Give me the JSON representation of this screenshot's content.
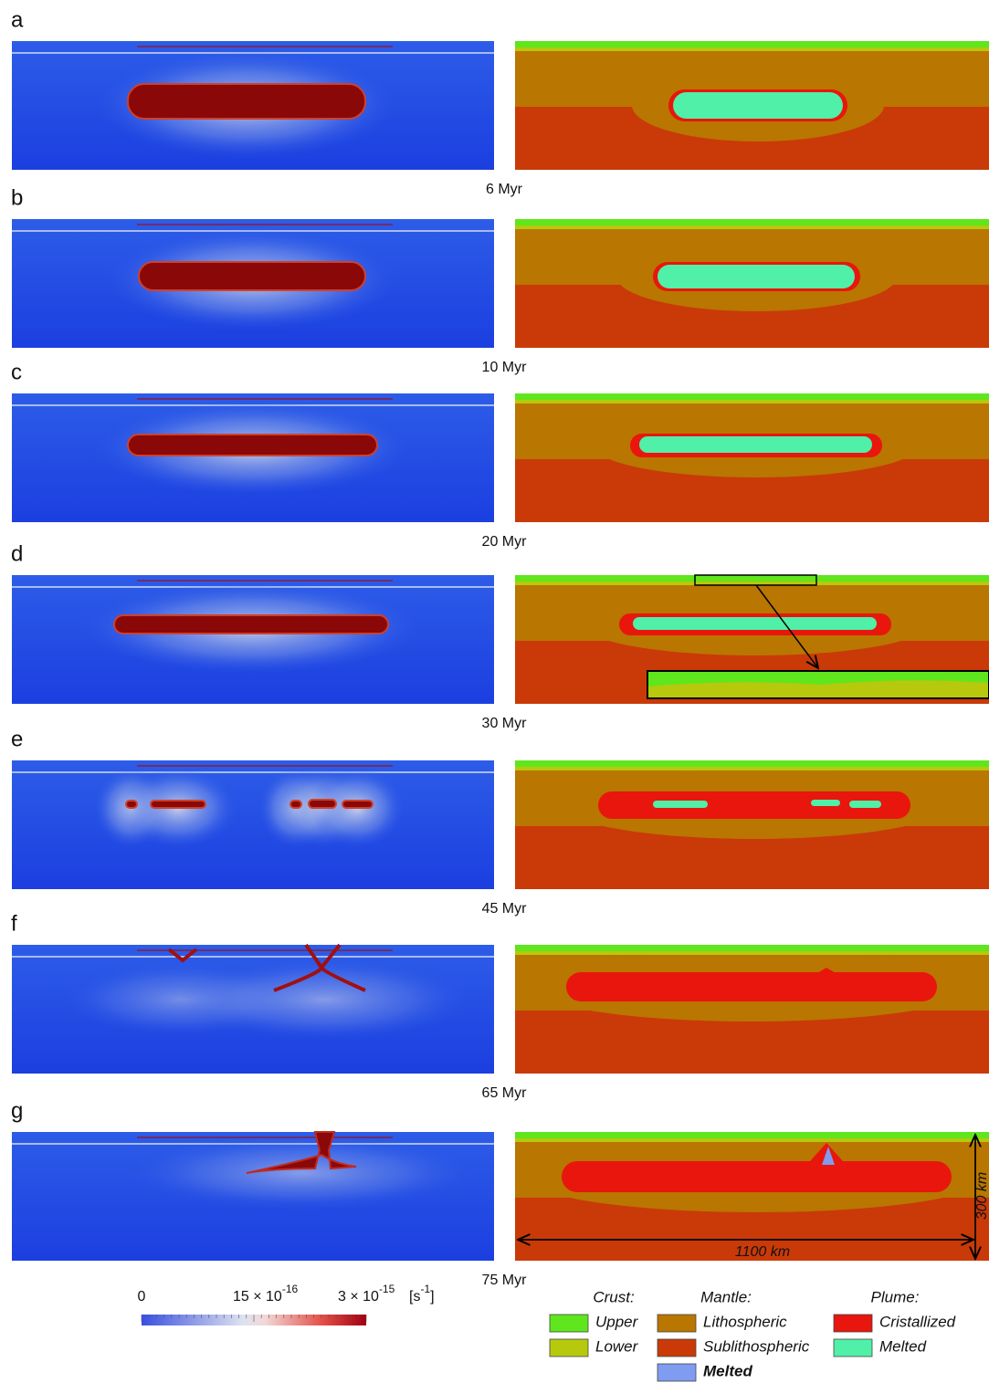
{
  "panels": [
    {
      "letter": "a",
      "time": "6 Myr"
    },
    {
      "letter": "b",
      "time": "10 Myr"
    },
    {
      "letter": "c",
      "time": "20 Myr"
    },
    {
      "letter": "d",
      "time": "30 Myr"
    },
    {
      "letter": "e",
      "time": "45 Myr"
    },
    {
      "letter": "f",
      "time": "65 Myr"
    },
    {
      "letter": "g",
      "time": "75 Myr"
    }
  ],
  "colorbar": {
    "ticks": [
      {
        "text": "0"
      },
      {
        "text": "15 × 10",
        "sup": "-16"
      },
      {
        "text": "3 × 10",
        "sup": "-15"
      }
    ],
    "unit": {
      "open": "[s",
      "sup": "-1",
      "close": "]"
    }
  },
  "legend": [
    {
      "heading": "Crust:",
      "items": [
        {
          "label": "Upper",
          "color": "#5fe61c"
        },
        {
          "label": "Lower",
          "color": "#b7c90c"
        }
      ]
    },
    {
      "heading": "Mantle:",
      "items": [
        {
          "label": "Lithospheric",
          "color": "#b97600"
        },
        {
          "label": "Sublithospheric",
          "color": "#c93a08"
        },
        {
          "label": "Melted",
          "color": "#7f9cf0",
          "bold": true
        }
      ]
    },
    {
      "heading": "Plume:",
      "items": [
        {
          "label": "Cristallized",
          "color": "#e8160c"
        },
        {
          "label": "Melted",
          "color": "#50f0a8"
        }
      ]
    }
  ],
  "scale": {
    "width": "1100 km",
    "depth": "300 km"
  }
}
